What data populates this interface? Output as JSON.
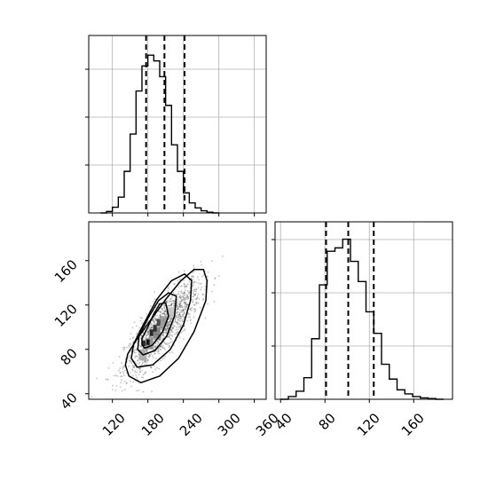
{
  "chart_data": [
    {
      "type": "histogram",
      "panel": "top-left",
      "bins": [
        100,
        110,
        120,
        130,
        140,
        150,
        160,
        170,
        180,
        190,
        200,
        210,
        220,
        230,
        240,
        250,
        260,
        270,
        280,
        290,
        300
      ],
      "counts": [
        0,
        2,
        8,
        22,
        58,
        110,
        170,
        205,
        220,
        212,
        190,
        150,
        95,
        58,
        28,
        14,
        7,
        3,
        1,
        0
      ],
      "xlim": [
        80,
        380
      ],
      "ymax": 240,
      "xticks": [
        120,
        180,
        240,
        300,
        360
      ],
      "quantile_lines": [
        177,
        208,
        242
      ],
      "grid": true
    },
    {
      "type": "scatter+contour",
      "panel": "bottom-left",
      "xlim": [
        80,
        380
      ],
      "ylim": [
        35,
        195
      ],
      "xticks": [
        120,
        180,
        240,
        300,
        360
      ],
      "yticks": [
        40,
        80,
        120,
        160
      ],
      "xtick_labels": [
        "120",
        "180",
        "240",
        "300",
        "360"
      ],
      "ytick_labels": [
        "40",
        "80",
        "120",
        "160"
      ],
      "mean": [
        205,
        100
      ],
      "contours": [
        [
          [
            170,
            84
          ],
          [
            175,
            81
          ],
          [
            188,
            84
          ],
          [
            205,
            96
          ],
          [
            215,
            110
          ],
          [
            210,
            122
          ],
          [
            200,
            121
          ],
          [
            190,
            112
          ],
          [
            178,
            98
          ],
          [
            170,
            90
          ]
        ],
        [
          [
            163,
            80
          ],
          [
            172,
            75
          ],
          [
            192,
            79
          ],
          [
            212,
            92
          ],
          [
            225,
            110
          ],
          [
            228,
            128
          ],
          [
            215,
            131
          ],
          [
            198,
            124
          ],
          [
            180,
            108
          ],
          [
            165,
            92
          ]
        ],
        [
          [
            152,
            72
          ],
          [
            162,
            64
          ],
          [
            188,
            66
          ],
          [
            218,
            80
          ],
          [
            240,
            102
          ],
          [
            252,
            124
          ],
          [
            254,
            142
          ],
          [
            242,
            148
          ],
          [
            220,
            142
          ],
          [
            195,
            125
          ],
          [
            172,
            102
          ],
          [
            156,
            85
          ]
        ],
        [
          [
            142,
            66
          ],
          [
            148,
            56
          ],
          [
            168,
            50
          ],
          [
            200,
            56
          ],
          [
            232,
            72
          ],
          [
            258,
            96
          ],
          [
            278,
            124
          ],
          [
            280,
            142
          ],
          [
            274,
            152
          ],
          [
            258,
            152
          ],
          [
            236,
            142
          ],
          [
            210,
            125
          ],
          [
            184,
            106
          ],
          [
            160,
            88
          ],
          [
            146,
            76
          ]
        ]
      ],
      "grid": false
    },
    {
      "type": "histogram",
      "panel": "bottom-right",
      "bins": [
        40,
        47,
        54,
        61,
        68,
        75,
        82,
        89,
        96,
        103,
        110,
        117,
        124,
        131,
        138,
        145,
        152,
        159,
        166,
        173,
        180,
        187
      ],
      "counts": [
        0,
        4,
        12,
        32,
        90,
        170,
        220,
        225,
        238,
        205,
        175,
        130,
        98,
        52,
        30,
        14,
        8,
        4,
        2,
        1,
        0
      ],
      "xlim": [
        35,
        195
      ],
      "ymax": 240,
      "xticks": [
        40,
        80,
        120,
        160
      ],
      "xtick_labels": [
        "40",
        "80",
        "120",
        "160"
      ],
      "quantile_lines": [
        81,
        101,
        124
      ],
      "grid": true
    }
  ]
}
